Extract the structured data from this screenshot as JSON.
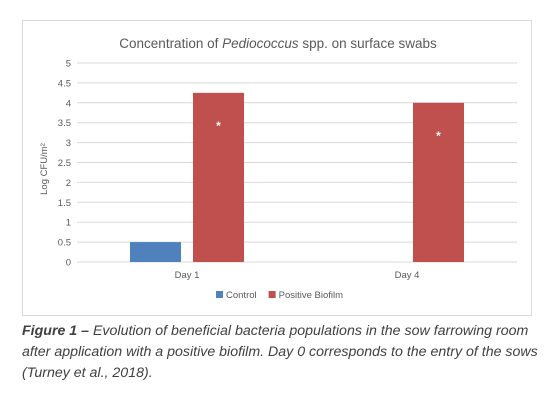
{
  "chart_data": {
    "type": "bar",
    "title": {
      "prefix": "Concentration of ",
      "italic": "Pediococcus",
      "suffix": " spp. on surface swabs"
    },
    "ylabel": "Log CFU/m²",
    "xlabel": "",
    "ylim": [
      0,
      5
    ],
    "yticks": [
      "0",
      "0.5",
      "1",
      "1.5",
      "2",
      "2.5",
      "3",
      "3.5",
      "4",
      "4.5",
      "5"
    ],
    "categories": [
      "Day 1",
      "Day 4"
    ],
    "series": [
      {
        "name": "Control",
        "color": "#4f81bd",
        "values": [
          0.5,
          0
        ],
        "markers": [
          "",
          ""
        ]
      },
      {
        "name": "Positive Biofilm",
        "color": "#c0504d",
        "values": [
          4.25,
          4.0
        ],
        "markers": [
          "*",
          "*"
        ]
      }
    ],
    "grid": true,
    "legend": "bottom"
  },
  "caption": {
    "label": "Figure 1 –",
    "text": " Evolution of beneficial bacteria populations in the sow farrowing room after application with a positive biofilm. Day 0 corresponds to the entry of the sows (Turney et al., 2018)."
  }
}
